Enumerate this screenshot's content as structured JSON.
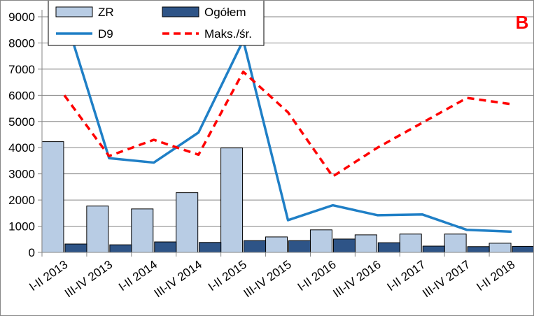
{
  "chart_data": {
    "type": "bar",
    "panel_letter": "B",
    "categories": [
      "I-II 2013",
      "III-IV 2013",
      "I-II 2014",
      "III-IV 2014",
      "I-II 2015",
      "III-IV 2015",
      "I-II 2016",
      "III-IV 2016",
      "I-II 2017",
      "III-IV 2017",
      "I-II 2018"
    ],
    "ylim": [
      0,
      9000
    ],
    "yticks": [
      0,
      1000,
      2000,
      3000,
      4000,
      5000,
      6000,
      7000,
      8000,
      9000
    ],
    "grid": true,
    "legend_placement": "top-left",
    "series": [
      {
        "name": "ZR",
        "kind": "bar",
        "color": "#b8cce4",
        "values": [
          4230,
          1770,
          1660,
          2280,
          3990,
          590,
          860,
          670,
          700,
          700,
          350
        ]
      },
      {
        "name": "Ogółem",
        "kind": "bar",
        "color": "#2e5487",
        "values": [
          320,
          290,
          400,
          380,
          450,
          450,
          510,
          370,
          240,
          220,
          230
        ]
      },
      {
        "name": "D9",
        "kind": "line",
        "color": "#1f7fc6",
        "dash": "solid",
        "values": [
          9100,
          3600,
          3430,
          4580,
          8100,
          1230,
          1800,
          1420,
          1450,
          860,
          790
        ]
      },
      {
        "name": "Maks./śr.",
        "kind": "line",
        "color": "#ff0000",
        "dash": "dashed",
        "values": [
          6000,
          3680,
          4300,
          3730,
          6900,
          5350,
          2900,
          4000,
          4950,
          5900,
          5660
        ]
      }
    ]
  }
}
